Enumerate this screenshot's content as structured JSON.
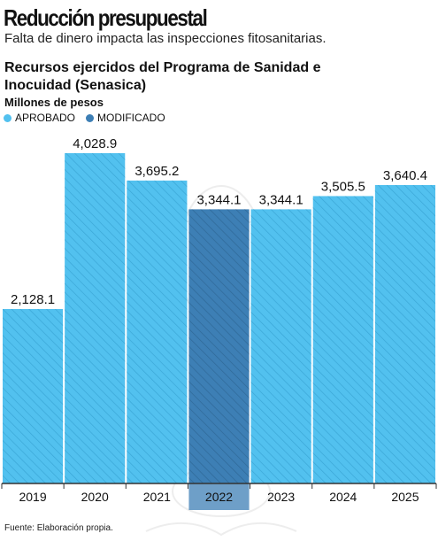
{
  "header": {
    "title": "Reducción presupuestal",
    "subtitle": "Falta de dinero impacta las inspecciones fitosanitarias."
  },
  "footer": {
    "source": "Fuente: Elaboración propia."
  },
  "colors": {
    "aprobado": "#52c1ef",
    "modificado": "#3d7fb5",
    "hatch": "#3aa6d6",
    "axis": "#333333"
  },
  "chart_data": {
    "type": "bar",
    "title": "Recursos ejercidos del Programa de Sanidad e Inocuidad (Senasica)",
    "ylabel": "Millones de pesos",
    "xlabel": "",
    "legend": [
      {
        "name": "APROBADO",
        "color": "#52c1ef"
      },
      {
        "name": "MODIFICADO",
        "color": "#3d7fb5"
      }
    ],
    "legend_position": "top-left",
    "categories": [
      "2019",
      "2020",
      "2021",
      "2022",
      "2023",
      "2024",
      "2025"
    ],
    "values": [
      2128.1,
      4028.9,
      3695.2,
      3344.1,
      3344.1,
      3505.5,
      3640.4
    ],
    "value_labels": [
      "2,128.1",
      "4,028.9",
      "3,695.2",
      "3,344.1",
      "3,344.1",
      "3,505.5",
      "3,640.4"
    ],
    "series_per_bar": [
      "APROBADO",
      "APROBADO",
      "APROBADO",
      "MODIFICADO",
      "APROBADO",
      "APROBADO",
      "APROBADO"
    ],
    "ylim": [
      0,
      4028.9
    ],
    "grid": false
  }
}
